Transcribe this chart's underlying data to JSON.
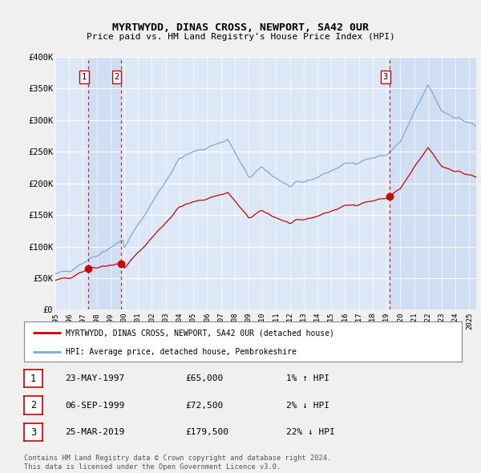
{
  "title": "MYRTWYDD, DINAS CROSS, NEWPORT, SA42 0UR",
  "subtitle": "Price paid vs. HM Land Registry's House Price Index (HPI)",
  "legend_line1": "MYRTWYDD, DINAS CROSS, NEWPORT, SA42 0UR (detached house)",
  "legend_line2": "HPI: Average price, detached house, Pembrokeshire",
  "table_rows": [
    [
      "1",
      "23-MAY-1997",
      "£65,000",
      "1% ↑ HPI"
    ],
    [
      "2",
      "06-SEP-1999",
      "£72,500",
      "2% ↓ HPI"
    ],
    [
      "3",
      "25-MAR-2019",
      "£179,500",
      "22% ↓ HPI"
    ]
  ],
  "footnote": "Contains HM Land Registry data © Crown copyright and database right 2024.\nThis data is licensed under the Open Government Licence v3.0.",
  "ylim": [
    0,
    400000
  ],
  "yticks": [
    0,
    50000,
    100000,
    150000,
    200000,
    250000,
    300000,
    350000,
    400000
  ],
  "background_color": "#f0f0f0",
  "plot_bg": "#dce8f8",
  "band_color": "#c8d8f0",
  "grid_color": "#ffffff",
  "hpi_color": "#7aaad8",
  "price_color": "#cc0000",
  "marker_color": "#cc0000",
  "vline_color": "#cc0000",
  "sale_markers": [
    {
      "date": 1997.39,
      "price": 65000,
      "label": "1"
    },
    {
      "date": 1999.75,
      "price": 72500,
      "label": "2"
    },
    {
      "date": 2019.23,
      "price": 179500,
      "label": "3"
    }
  ],
  "xlim_start": 1995.0,
  "xlim_end": 2025.5
}
